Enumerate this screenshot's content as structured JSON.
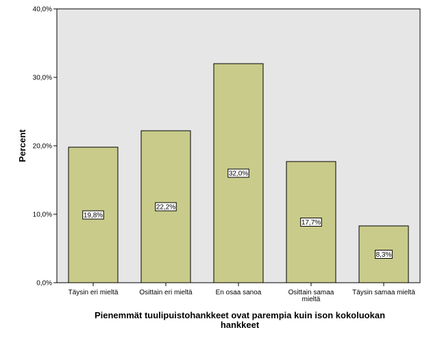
{
  "chart_data": {
    "type": "bar",
    "categories": [
      [
        "Täysin eri mieltä"
      ],
      [
        "Osittain eri mieltä"
      ],
      [
        "En osaa sanoa"
      ],
      [
        "Osittain samaa",
        "mieltä"
      ],
      [
        "Täysin samaa mieltä"
      ]
    ],
    "values": [
      19.8,
      22.2,
      32.0,
      17.7,
      8.3
    ],
    "data_labels": [
      "19,8%",
      "22,2%",
      "32,0%",
      "17,7%",
      "8,3%"
    ],
    "ylabel": "Percent",
    "xlabel_lines": [
      "Pienemmät tuulipuistohankkeet ovat parempia kuin ison kokoluokan",
      "hankkeet"
    ],
    "ylim": [
      0,
      40
    ],
    "yticks": [
      0,
      10,
      20,
      30,
      40
    ],
    "ytick_labels": [
      "0,0%",
      "10,0%",
      "20,0%",
      "30,0%",
      "40,0%"
    ],
    "grid": false,
    "colors": {
      "plot_background": "#e6e6e6",
      "bar_fill": "#c9cb8a",
      "bar_stroke": "#000000"
    }
  }
}
